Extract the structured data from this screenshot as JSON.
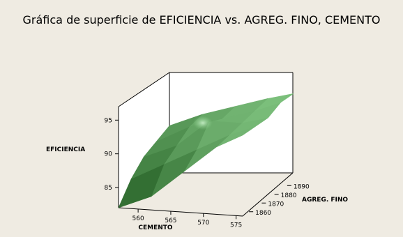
{
  "chart_data": {
    "type": "surface",
    "title": "Gráfica de superficie de EFICIENCIA vs. AGREG. FINO, CEMENTO",
    "xlabel": "CEMENTO",
    "ylabel": "AGREG. FINO",
    "zlabel": "EFICIENCIA",
    "x_ticks": [
      560,
      565,
      570,
      575
    ],
    "y_ticks": [
      1860,
      1870,
      1880,
      1890
    ],
    "z_ticks": [
      85,
      90,
      95
    ],
    "xlim": [
      557,
      576
    ],
    "ylim": [
      1855,
      1895
    ],
    "zlim": [
      82,
      97
    ],
    "grid": false,
    "surface": {
      "x": [
        557,
        562,
        567,
        572,
        576
      ],
      "y": [
        1855,
        1865,
        1875,
        1885,
        1895
      ],
      "z": [
        [
          82,
          84,
          88,
          92,
          94
        ],
        [
          85,
          87.5,
          90,
          92.5,
          94
        ],
        [
          87,
          89,
          93,
          93,
          94
        ],
        [
          88,
          90.5,
          92,
          93.5,
          95
        ],
        [
          89,
          91,
          92.5,
          94,
          95
        ]
      ]
    },
    "colors": {
      "surface_light": "#8fd48f",
      "surface_mid": "#4ea84e",
      "surface_dark": "#1f5a1f"
    }
  }
}
